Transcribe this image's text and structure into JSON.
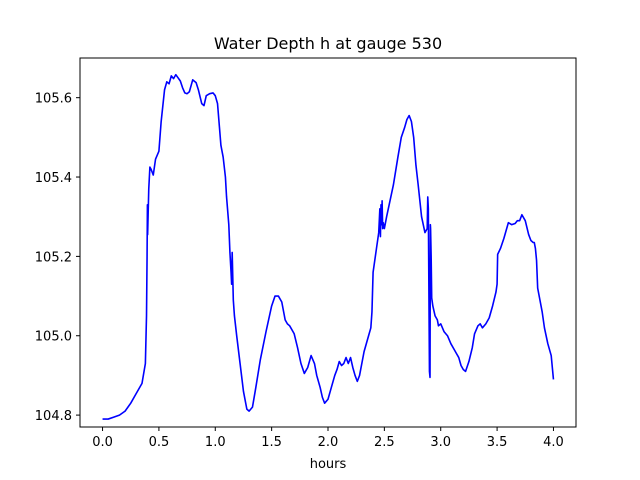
{
  "chart_data": {
    "type": "line",
    "title": "Water Depth h at gauge 530",
    "xlabel": "hours",
    "ylabel": "",
    "xlim": [
      -0.2,
      4.2
    ],
    "ylim": [
      104.77,
      105.7
    ],
    "x_ticks": [
      0.0,
      0.5,
      1.0,
      1.5,
      2.0,
      2.5,
      3.0,
      3.5,
      4.0
    ],
    "x_tick_labels": [
      "0.0",
      "0.5",
      "1.0",
      "1.5",
      "2.0",
      "2.5",
      "3.0",
      "3.5",
      "4.0"
    ],
    "y_ticks": [
      104.8,
      105.0,
      105.2,
      105.4,
      105.6
    ],
    "y_tick_labels": [
      "104.8",
      "105.0",
      "105.2",
      "105.4",
      "105.6"
    ],
    "grid": false,
    "legend": "none",
    "series": [
      {
        "color": "#0000ff",
        "x": [
          0.0,
          0.05,
          0.1,
          0.15,
          0.2,
          0.25,
          0.3,
          0.35,
          0.38,
          0.39,
          0.395,
          0.398,
          0.4,
          0.41,
          0.42,
          0.43,
          0.45,
          0.47,
          0.5,
          0.52,
          0.55,
          0.57,
          0.59,
          0.61,
          0.63,
          0.65,
          0.67,
          0.69,
          0.71,
          0.73,
          0.75,
          0.77,
          0.8,
          0.83,
          0.85,
          0.88,
          0.9,
          0.92,
          0.95,
          0.98,
          1.0,
          1.02,
          1.05,
          1.07,
          1.09,
          1.1,
          1.12,
          1.13,
          1.14,
          1.145,
          1.15,
          1.155,
          1.16,
          1.17,
          1.19,
          1.22,
          1.25,
          1.28,
          1.3,
          1.33,
          1.36,
          1.4,
          1.45,
          1.5,
          1.53,
          1.56,
          1.59,
          1.62,
          1.64,
          1.66,
          1.7,
          1.73,
          1.76,
          1.79,
          1.82,
          1.85,
          1.88,
          1.9,
          1.93,
          1.95,
          1.97,
          2.0,
          2.03,
          2.06,
          2.08,
          2.1,
          2.12,
          2.14,
          2.16,
          2.18,
          2.2,
          2.22,
          2.24,
          2.26,
          2.28,
          2.32,
          2.36,
          2.38,
          2.39,
          2.4,
          2.43,
          2.45,
          2.46,
          2.465,
          2.47,
          2.475,
          2.48,
          2.485,
          2.49,
          2.5,
          2.52,
          2.55,
          2.58,
          2.62,
          2.65,
          2.68,
          2.7,
          2.72,
          2.74,
          2.76,
          2.78,
          2.8,
          2.83,
          2.86,
          2.88,
          2.885,
          2.89,
          2.9,
          2.905,
          2.908,
          2.91,
          2.915,
          2.92,
          2.93,
          2.95,
          2.97,
          2.98,
          3.0,
          3.03,
          3.06,
          3.09,
          3.12,
          3.14,
          3.16,
          3.18,
          3.2,
          3.22,
          3.25,
          3.28,
          3.3,
          3.33,
          3.35,
          3.37,
          3.4,
          3.43,
          3.46,
          3.49,
          3.5,
          3.505,
          3.53,
          3.56,
          3.59,
          3.6,
          3.63,
          3.66,
          3.68,
          3.7,
          3.72,
          3.75,
          3.78,
          3.8,
          3.82,
          3.83,
          3.84,
          3.85,
          3.86,
          3.88,
          3.9,
          3.92,
          3.95,
          3.98,
          4.0
        ],
        "y": [
          104.79,
          104.79,
          104.795,
          104.8,
          104.81,
          104.83,
          104.855,
          104.88,
          104.93,
          105.05,
          105.2,
          105.33,
          105.255,
          105.37,
          105.425,
          105.42,
          105.405,
          105.445,
          105.465,
          105.54,
          105.62,
          105.64,
          105.635,
          105.655,
          105.648,
          105.658,
          105.65,
          105.642,
          105.625,
          105.612,
          105.61,
          105.615,
          105.645,
          105.638,
          105.62,
          105.585,
          105.58,
          105.605,
          105.61,
          105.612,
          105.605,
          105.585,
          105.48,
          105.45,
          105.4,
          105.35,
          105.28,
          105.21,
          105.16,
          105.13,
          105.21,
          105.15,
          105.09,
          105.05,
          105.0,
          104.93,
          104.86,
          104.815,
          104.81,
          104.82,
          104.87,
          104.94,
          105.01,
          105.075,
          105.1,
          105.1,
          105.085,
          105.04,
          105.03,
          105.025,
          105.005,
          104.97,
          104.93,
          104.905,
          104.92,
          104.95,
          104.93,
          104.9,
          104.87,
          104.845,
          104.83,
          104.84,
          104.87,
          104.9,
          104.915,
          104.935,
          104.925,
          104.93,
          104.945,
          104.93,
          104.945,
          104.92,
          104.9,
          104.885,
          104.9,
          104.96,
          105.0,
          105.02,
          105.06,
          105.16,
          105.22,
          105.26,
          105.32,
          105.25,
          105.33,
          105.28,
          105.34,
          105.27,
          105.285,
          105.27,
          105.3,
          105.34,
          105.38,
          105.45,
          105.5,
          105.525,
          105.545,
          105.555,
          105.54,
          105.5,
          105.43,
          105.38,
          105.3,
          105.26,
          105.27,
          105.35,
          105.32,
          104.91,
          104.895,
          105.28,
          105.27,
          105.2,
          105.095,
          105.075,
          105.05,
          105.04,
          105.025,
          105.03,
          105.01,
          105.0,
          104.98,
          104.965,
          104.955,
          104.945,
          104.925,
          104.915,
          104.91,
          104.935,
          104.97,
          105.005,
          105.025,
          105.03,
          105.02,
          105.03,
          105.045,
          105.075,
          105.11,
          105.13,
          105.205,
          105.22,
          105.245,
          105.275,
          105.285,
          105.28,
          105.283,
          105.29,
          105.29,
          105.305,
          105.29,
          105.255,
          105.24,
          105.235,
          105.235,
          105.22,
          105.19,
          105.12,
          105.09,
          105.06,
          105.02,
          104.98,
          104.95,
          104.89
        ]
      }
    ]
  }
}
